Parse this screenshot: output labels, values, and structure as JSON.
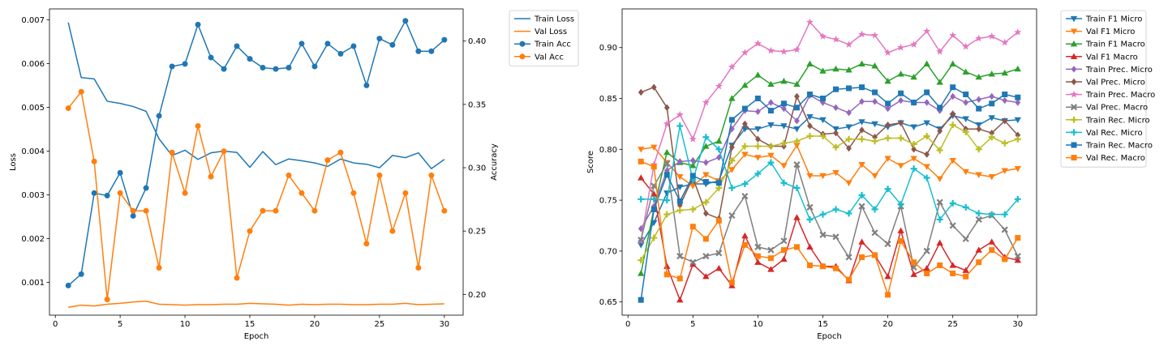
{
  "chart_data": [
    {
      "type": "line",
      "xlabel": "Epoch",
      "ylabel": "Loss",
      "y2label": "Accuracy",
      "xlim": [
        -0.45,
        31.45
      ],
      "ylim": [
        0.00025,
        0.00725
      ],
      "y2lim": [
        0.1836,
        0.4254
      ],
      "xticks": [
        0,
        5,
        10,
        15,
        20,
        25,
        30
      ],
      "yticks": [
        0.001,
        0.002,
        0.003,
        0.004,
        0.005,
        0.006,
        0.007
      ],
      "y2ticks": [
        0.2,
        0.25,
        0.3,
        0.35,
        0.4
      ],
      "x": [
        1,
        2,
        3,
        4,
        5,
        6,
        7,
        8,
        9,
        10,
        11,
        12,
        13,
        14,
        15,
        16,
        17,
        18,
        19,
        20,
        21,
        22,
        23,
        24,
        25,
        26,
        27,
        28,
        29,
        30
      ],
      "legend": "outside-upper-right",
      "series": [
        {
          "name": "Train Loss",
          "axis": "left",
          "color": "#1f77b4",
          "marker": "none",
          "values": [
            0.00694,
            0.00568,
            0.00565,
            0.00514,
            0.00509,
            0.00502,
            0.00491,
            0.00428,
            0.0039,
            0.00402,
            0.00381,
            0.00396,
            0.004,
            0.00397,
            0.00363,
            0.00399,
            0.00369,
            0.00382,
            0.00378,
            0.00373,
            0.00365,
            0.00382,
            0.00373,
            0.0037,
            0.00362,
            0.0039,
            0.00385,
            0.00396,
            0.0036,
            0.00381
          ]
        },
        {
          "name": "Val Loss",
          "axis": "left",
          "color": "#ff7f0e",
          "marker": "none",
          "values": [
            0.00043,
            0.00048,
            0.00046,
            0.0005,
            0.00052,
            0.00055,
            0.00057,
            0.0005,
            0.00049,
            0.00048,
            0.00049,
            0.00049,
            0.0005,
            0.0005,
            0.00052,
            0.00051,
            0.0005,
            0.00048,
            0.0005,
            0.00049,
            0.0005,
            0.0005,
            0.00049,
            0.00049,
            0.0005,
            0.0005,
            0.00052,
            0.00049,
            0.0005,
            0.00051
          ]
        },
        {
          "name": "Train Acc",
          "axis": "right",
          "color": "#1f77b4",
          "marker": "circle",
          "values": [
            0.207,
            0.216,
            0.28,
            0.278,
            0.296,
            0.262,
            0.284,
            0.341,
            0.38,
            0.382,
            0.413,
            0.387,
            0.378,
            0.396,
            0.386,
            0.379,
            0.378,
            0.379,
            0.398,
            0.38,
            0.398,
            0.39,
            0.396,
            0.365,
            0.402,
            0.397,
            0.416,
            0.392,
            0.392,
            0.401
          ]
        },
        {
          "name": "Val Acc",
          "axis": "right",
          "color": "#ff7f0e",
          "marker": "circle",
          "values": [
            0.347,
            0.36,
            0.305,
            0.196,
            0.28,
            0.266,
            0.266,
            0.221,
            0.312,
            0.28,
            0.333,
            0.293,
            0.313,
            0.213,
            0.25,
            0.266,
            0.266,
            0.294,
            0.28,
            0.266,
            0.306,
            0.312,
            0.28,
            0.24,
            0.294,
            0.25,
            0.28,
            0.221,
            0.294,
            0.266
          ]
        }
      ]
    },
    {
      "type": "line",
      "xlabel": "Epoch",
      "ylabel": "Score",
      "xlim": [
        -0.45,
        31.45
      ],
      "ylim": [
        0.637,
        0.938
      ],
      "xticks": [
        0,
        5,
        10,
        15,
        20,
        25,
        30
      ],
      "yticks": [
        0.65,
        0.7,
        0.75,
        0.8,
        0.85,
        0.9
      ],
      "x": [
        1,
        2,
        3,
        4,
        5,
        6,
        7,
        8,
        9,
        10,
        11,
        12,
        13,
        14,
        15,
        16,
        17,
        18,
        19,
        20,
        21,
        22,
        23,
        24,
        25,
        26,
        27,
        28,
        29,
        30
      ],
      "legend": "outside-upper-right",
      "series": [
        {
          "name": "Train F1 Micro",
          "color": "#1f77b4",
          "marker": "triangle_down",
          "values": [
            0.706,
            0.728,
            0.757,
            0.763,
            0.766,
            0.766,
            0.769,
            0.804,
            0.82,
            0.82,
            0.824,
            0.823,
            0.82,
            0.832,
            0.829,
            0.82,
            0.822,
            0.827,
            0.825,
            0.822,
            0.826,
            0.822,
            0.826,
            0.82,
            0.833,
            0.83,
            0.824,
            0.831,
            0.828,
            0.829
          ]
        },
        {
          "name": "Val F1 Micro",
          "color": "#ff7f0e",
          "marker": "triangle_down",
          "values": [
            0.8,
            0.802,
            0.787,
            0.773,
            0.764,
            0.775,
            0.769,
            0.78,
            0.795,
            0.792,
            0.794,
            0.784,
            0.804,
            0.774,
            0.774,
            0.777,
            0.767,
            0.785,
            0.774,
            0.791,
            0.784,
            0.791,
            0.783,
            0.771,
            0.789,
            0.778,
            0.775,
            0.773,
            0.779,
            0.781
          ]
        },
        {
          "name": "Train F1 Macro",
          "color": "#2ca02c",
          "marker": "triangle_up",
          "values": [
            0.678,
            0.742,
            0.797,
            0.787,
            0.784,
            0.803,
            0.808,
            0.85,
            0.863,
            0.873,
            0.864,
            0.867,
            0.864,
            0.884,
            0.877,
            0.879,
            0.878,
            0.884,
            0.882,
            0.867,
            0.874,
            0.871,
            0.884,
            0.866,
            0.884,
            0.876,
            0.871,
            0.874,
            0.875,
            0.879
          ]
        },
        {
          "name": "Val F1 Macro",
          "color": "#d62728",
          "marker": "triangle_up",
          "values": [
            0.772,
            0.756,
            0.685,
            0.652,
            0.687,
            0.675,
            0.683,
            0.666,
            0.715,
            0.689,
            0.682,
            0.692,
            0.733,
            0.704,
            0.685,
            0.685,
            0.671,
            0.709,
            0.696,
            0.675,
            0.72,
            0.677,
            0.683,
            0.708,
            0.686,
            0.681,
            0.701,
            0.709,
            0.694,
            0.691
          ]
        },
        {
          "name": "Train Prec. Micro",
          "color": "#9467bd",
          "marker": "diamond",
          "values": [
            0.722,
            0.744,
            0.779,
            0.788,
            0.789,
            0.787,
            0.792,
            0.82,
            0.838,
            0.837,
            0.846,
            0.84,
            0.828,
            0.853,
            0.846,
            0.841,
            0.836,
            0.847,
            0.847,
            0.84,
            0.848,
            0.846,
            0.846,
            0.838,
            0.852,
            0.846,
            0.849,
            0.852,
            0.848,
            0.846
          ]
        },
        {
          "name": "Val Prec. Micro",
          "color": "#8c564b",
          "marker": "diamond",
          "values": [
            0.856,
            0.861,
            0.841,
            0.745,
            0.772,
            0.737,
            0.732,
            0.802,
            0.825,
            0.81,
            0.803,
            0.803,
            0.852,
            0.823,
            0.815,
            0.816,
            0.801,
            0.819,
            0.812,
            0.824,
            0.826,
            0.8,
            0.795,
            0.818,
            0.835,
            0.82,
            0.82,
            0.816,
            0.828,
            0.814
          ]
        },
        {
          "name": "Train Prec. Macro",
          "color": "#e377c2",
          "marker": "star",
          "values": [
            0.71,
            0.785,
            0.825,
            0.834,
            0.81,
            0.846,
            0.862,
            0.881,
            0.895,
            0.904,
            0.897,
            0.896,
            0.898,
            0.925,
            0.911,
            0.908,
            0.903,
            0.913,
            0.912,
            0.895,
            0.9,
            0.903,
            0.916,
            0.896,
            0.912,
            0.901,
            0.909,
            0.911,
            0.905,
            0.915
          ]
        },
        {
          "name": "Val Prec. Macro",
          "color": "#7f7f7f",
          "marker": "x",
          "values": [
            0.711,
            0.764,
            0.786,
            0.695,
            0.689,
            0.695,
            0.698,
            0.735,
            0.754,
            0.704,
            0.701,
            0.71,
            0.785,
            0.743,
            0.716,
            0.714,
            0.694,
            0.744,
            0.718,
            0.707,
            0.744,
            0.684,
            0.7,
            0.748,
            0.725,
            0.712,
            0.731,
            0.735,
            0.721,
            0.695
          ]
        },
        {
          "name": "Train Rec. Micro",
          "color": "#bcbd22",
          "marker": "plus",
          "values": [
            0.691,
            0.713,
            0.736,
            0.74,
            0.741,
            0.748,
            0.762,
            0.789,
            0.803,
            0.803,
            0.803,
            0.806,
            0.808,
            0.813,
            0.813,
            0.802,
            0.81,
            0.81,
            0.808,
            0.811,
            0.811,
            0.805,
            0.813,
            0.799,
            0.824,
            0.817,
            0.8,
            0.812,
            0.806,
            0.81
          ]
        },
        {
          "name": "Val Rec. Micro",
          "color": "#17becf",
          "marker": "plus",
          "values": [
            0.751,
            0.751,
            0.75,
            0.823,
            0.77,
            0.812,
            0.8,
            0.762,
            0.766,
            0.776,
            0.787,
            0.767,
            0.762,
            0.731,
            0.736,
            0.741,
            0.737,
            0.755,
            0.741,
            0.761,
            0.746,
            0.781,
            0.772,
            0.731,
            0.747,
            0.743,
            0.737,
            0.736,
            0.736,
            0.751
          ]
        },
        {
          "name": "Train Rec. Macro",
          "color": "#1f77b4",
          "marker": "square",
          "values": [
            0.652,
            0.741,
            0.775,
            0.749,
            0.774,
            0.768,
            0.767,
            0.829,
            0.84,
            0.85,
            0.838,
            0.845,
            0.841,
            0.854,
            0.85,
            0.859,
            0.86,
            0.861,
            0.856,
            0.845,
            0.855,
            0.846,
            0.856,
            0.841,
            0.861,
            0.854,
            0.84,
            0.845,
            0.854,
            0.851
          ]
        },
        {
          "name": "Val Rec. Macro",
          "color": "#ff7f0e",
          "marker": "square",
          "values": [
            0.788,
            0.783,
            0.677,
            0.673,
            0.724,
            0.712,
            0.73,
            0.669,
            0.706,
            0.695,
            0.693,
            0.701,
            0.704,
            0.686,
            0.685,
            0.683,
            0.672,
            0.694,
            0.696,
            0.657,
            0.71,
            0.689,
            0.678,
            0.686,
            0.678,
            0.675,
            0.689,
            0.701,
            0.692,
            0.713
          ]
        }
      ]
    }
  ]
}
